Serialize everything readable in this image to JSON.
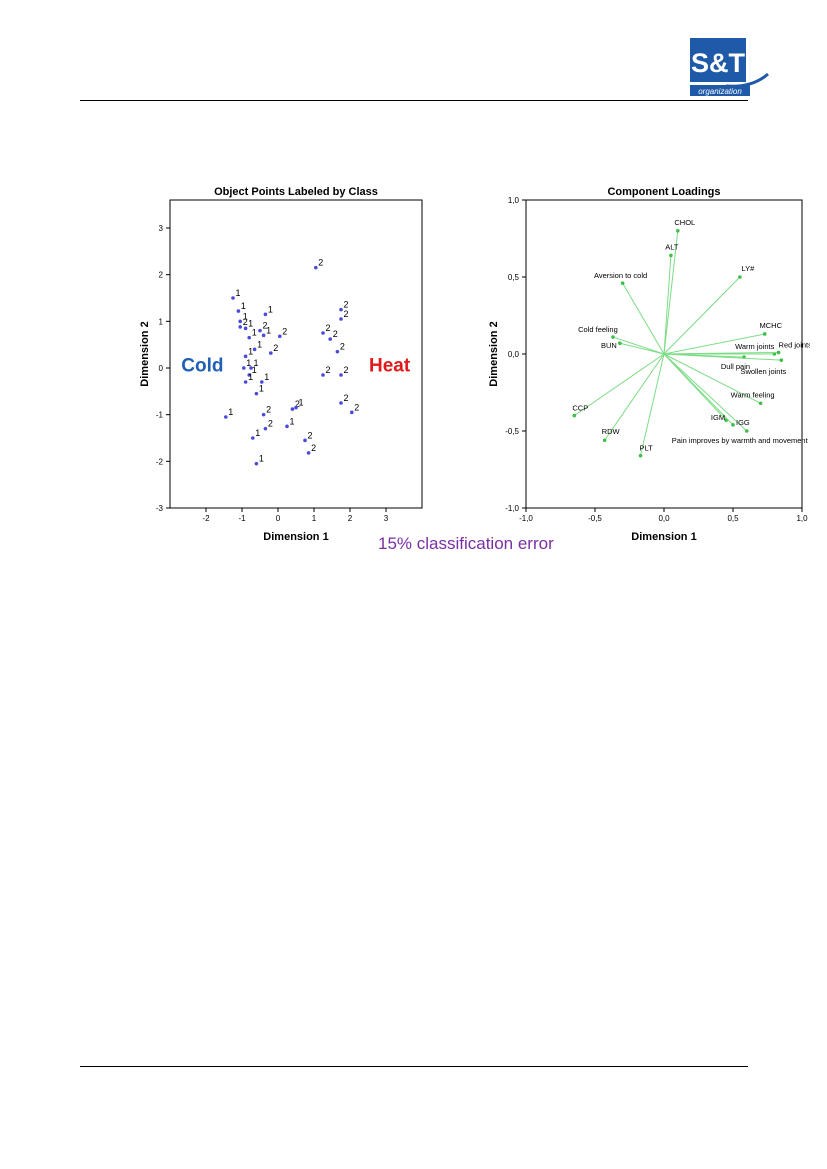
{
  "logo": {
    "text": "S&T",
    "subtext": "organization"
  },
  "error_note": "15% classification error",
  "chart_data": [
    {
      "type": "scatter",
      "title": "Object Points Labeled by Class",
      "xlabel": "Dimension 1",
      "ylabel": "Dimension 2",
      "xlim": [
        -3,
        4
      ],
      "ylim": [
        -3,
        3.6
      ],
      "xticks": [
        -2,
        -1,
        0,
        1,
        2,
        3
      ],
      "yticks": [
        -3,
        -2,
        -1,
        0,
        1,
        2,
        3
      ],
      "grid": false,
      "annotations": [
        {
          "text": "Cold",
          "x": -2.1,
          "y": 0.05,
          "color": "#1f5fb4"
        },
        {
          "text": "Heat",
          "x": 3.1,
          "y": 0.05,
          "color": "#e01a1a"
        }
      ],
      "point_color": "#4a4adb",
      "points": [
        {
          "x": -1.25,
          "y": 1.5,
          "label": "1"
        },
        {
          "x": -1.1,
          "y": 1.22,
          "label": "1"
        },
        {
          "x": -1.05,
          "y": 1.0,
          "label": "1"
        },
        {
          "x": -1.05,
          "y": 0.88,
          "label": "2"
        },
        {
          "x": -0.9,
          "y": 0.85,
          "label": "1"
        },
        {
          "x": -0.8,
          "y": 0.65,
          "label": "1"
        },
        {
          "x": -0.5,
          "y": 0.8,
          "label": "2"
        },
        {
          "x": -0.4,
          "y": 0.7,
          "label": "1"
        },
        {
          "x": -0.35,
          "y": 1.15,
          "label": "1"
        },
        {
          "x": 0.05,
          "y": 0.68,
          "label": "2"
        },
        {
          "x": -0.2,
          "y": 0.32,
          "label": "2"
        },
        {
          "x": -0.65,
          "y": 0.4,
          "label": "1"
        },
        {
          "x": -0.9,
          "y": 0.25,
          "label": "1"
        },
        {
          "x": -0.95,
          "y": 0.0,
          "label": "1"
        },
        {
          "x": -0.75,
          "y": 0.0,
          "label": "1"
        },
        {
          "x": -0.8,
          "y": -0.15,
          "label": "1"
        },
        {
          "x": -0.9,
          "y": -0.3,
          "label": "1"
        },
        {
          "x": -0.6,
          "y": -0.55,
          "label": "1"
        },
        {
          "x": -0.45,
          "y": -0.3,
          "label": "1"
        },
        {
          "x": -1.45,
          "y": -1.05,
          "label": "1"
        },
        {
          "x": -0.4,
          "y": -1.0,
          "label": "2"
        },
        {
          "x": -0.35,
          "y": -1.3,
          "label": "2"
        },
        {
          "x": -0.7,
          "y": -1.5,
          "label": "1"
        },
        {
          "x": -0.6,
          "y": -2.05,
          "label": "1"
        },
        {
          "x": 1.05,
          "y": 2.15,
          "label": "2"
        },
        {
          "x": 1.75,
          "y": 1.25,
          "label": "2"
        },
        {
          "x": 1.75,
          "y": 1.05,
          "label": "2"
        },
        {
          "x": 1.25,
          "y": 0.75,
          "label": "2"
        },
        {
          "x": 1.45,
          "y": 0.62,
          "label": "2"
        },
        {
          "x": 1.65,
          "y": 0.35,
          "label": "2"
        },
        {
          "x": 1.25,
          "y": -0.15,
          "label": "2"
        },
        {
          "x": 1.75,
          "y": -0.15,
          "label": "2"
        },
        {
          "x": 1.75,
          "y": -0.75,
          "label": "2"
        },
        {
          "x": 2.05,
          "y": -0.95,
          "label": "2"
        },
        {
          "x": 0.4,
          "y": -0.88,
          "label": "2"
        },
        {
          "x": 0.5,
          "y": -0.85,
          "label": "1"
        },
        {
          "x": 0.25,
          "y": -1.25,
          "label": "1"
        },
        {
          "x": 0.75,
          "y": -1.55,
          "label": "2"
        },
        {
          "x": 0.85,
          "y": -1.82,
          "label": "2"
        }
      ]
    },
    {
      "type": "scatter",
      "title": "Component Loadings",
      "xlabel": "Dimension 1",
      "ylabel": "Dimension 2",
      "xlim": [
        -1.0,
        1.0
      ],
      "ylim": [
        -1.0,
        1.0
      ],
      "xticks": [
        "-1,0",
        "-0,5",
        "0,0",
        "0,5",
        "1,0"
      ],
      "yticks": [
        "-1,0",
        "-0,5",
        "0,0",
        "0,5",
        "1,0"
      ],
      "xtick_values": [
        -1.0,
        -0.5,
        0.0,
        0.5,
        1.0
      ],
      "ytick_values": [
        -1.0,
        -0.5,
        0.0,
        0.5,
        1.0
      ],
      "grid": false,
      "vector_color": "#7ddc86",
      "loadings": [
        {
          "label": "CHOL",
          "x": 0.1,
          "y": 0.8
        },
        {
          "label": "ALT",
          "x": 0.05,
          "y": 0.64
        },
        {
          "label": "LY#",
          "x": 0.55,
          "y": 0.5
        },
        {
          "label": "Aversion to cold",
          "x": -0.3,
          "y": 0.46
        },
        {
          "label": "MCHC",
          "x": 0.73,
          "y": 0.13
        },
        {
          "label": "Cold feeling",
          "x": -0.37,
          "y": 0.11
        },
        {
          "label": "BUN",
          "x": -0.32,
          "y": 0.07
        },
        {
          "label": "Warm joints",
          "x": 0.8,
          "y": 0.0
        },
        {
          "label": "Red joints",
          "x": 0.83,
          "y": 0.01
        },
        {
          "label": "Dull pain",
          "x": 0.58,
          "y": -0.02
        },
        {
          "label": "Swollen joints",
          "x": 0.85,
          "y": -0.04
        },
        {
          "label": "Warm feeling",
          "x": 0.7,
          "y": -0.32
        },
        {
          "label": "IGM",
          "x": 0.45,
          "y": -0.43
        },
        {
          "label": "IGG",
          "x": 0.5,
          "y": -0.46
        },
        {
          "label": "CCP",
          "x": -0.65,
          "y": -0.4
        },
        {
          "label": "RDW",
          "x": -0.43,
          "y": -0.56
        },
        {
          "label": "Pain improves by warmth and movement",
          "x": 0.6,
          "y": -0.5
        },
        {
          "label": "PLT",
          "x": -0.17,
          "y": -0.66
        }
      ]
    }
  ]
}
